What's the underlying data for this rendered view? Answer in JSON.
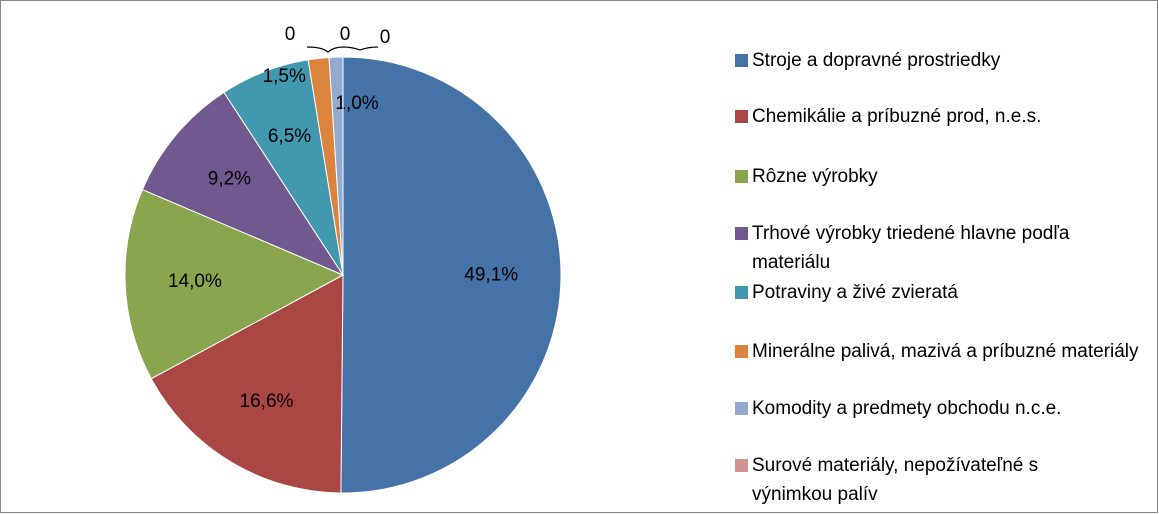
{
  "chart_data": {
    "type": "pie",
    "categories": [
      "Stroje a dopravné prostriedky",
      "Chemikálie a príbuzné prod, n.e.s.",
      "Rôzne výrobky",
      "Trhové výrobky triedené hlavne podľa materiálu",
      "Potraviny a živé zvieratá",
      "Minerálne palivá, mazivá a príbuzné materiály",
      "Komodity a predmety obchodu n.c.e.",
      "Surové materiály, nepožívateľné s výnimkou palív",
      null,
      null
    ],
    "values": [
      49.1,
      16.6,
      14.0,
      9.2,
      6.5,
      1.5,
      1.0,
      0,
      0,
      0
    ],
    "value_labels": [
      "49,1%",
      "16,6%",
      "14,0%",
      "9,2%",
      "6,5%",
      "1,5%",
      "1,0%",
      "0",
      "0",
      "0"
    ],
    "colors": [
      "#4572a7",
      "#aa4643",
      "#89a54e",
      "#71588f",
      "#4198af",
      "#db843d",
      "#93a9cf",
      "#d19392"
    ],
    "legend": "right"
  }
}
